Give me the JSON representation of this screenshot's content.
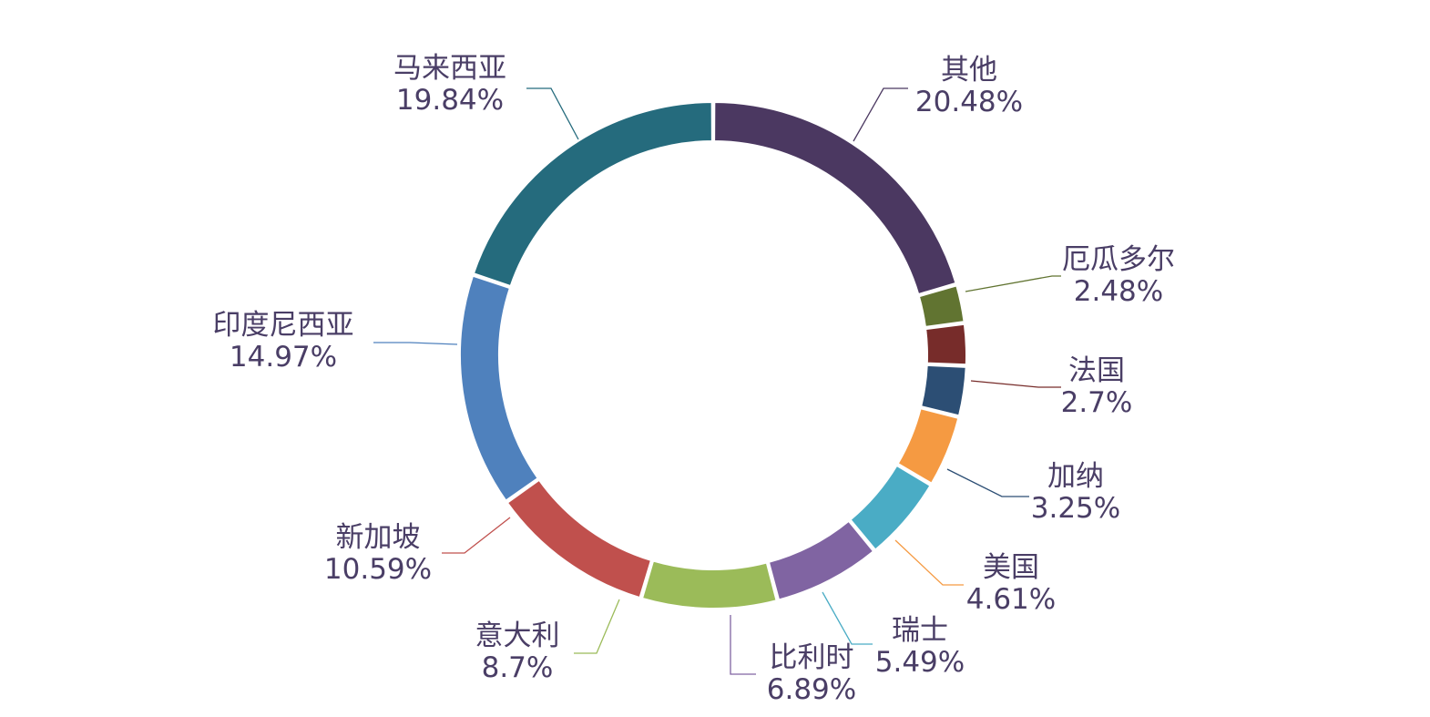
{
  "chart_data": {
    "type": "pie",
    "style": "donut",
    "categories": [
      "其他",
      "厄瓜多尔",
      "法国",
      "加纳",
      "美国",
      "瑞士",
      "比利时",
      "意大利",
      "新加坡",
      "印度尼西亚",
      "马来西亚"
    ],
    "values": [
      20.48,
      2.48,
      2.7,
      3.25,
      4.61,
      5.49,
      6.89,
      8.7,
      10.59,
      14.97,
      19.84
    ],
    "value_labels": [
      "20.48%",
      "2.48%",
      "2.7%",
      "3.25%",
      "4.61%",
      "5.49%",
      "6.89%",
      "8.7%",
      "10.59%",
      "14.97%",
      "19.84%"
    ],
    "colors": [
      "#4b3861",
      "#617431",
      "#772c2a",
      "#2c4e74",
      "#f59a42",
      "#4aacc5",
      "#8064a2",
      "#9bbb59",
      "#c0504d",
      "#4f81bd",
      "#256b7d"
    ],
    "label_color": "#4a3e66",
    "background": "#ffffff",
    "start_angle_deg": 0,
    "direction": "clockwise",
    "legend": "none",
    "labels_position": "outside-with-leader-lines"
  }
}
